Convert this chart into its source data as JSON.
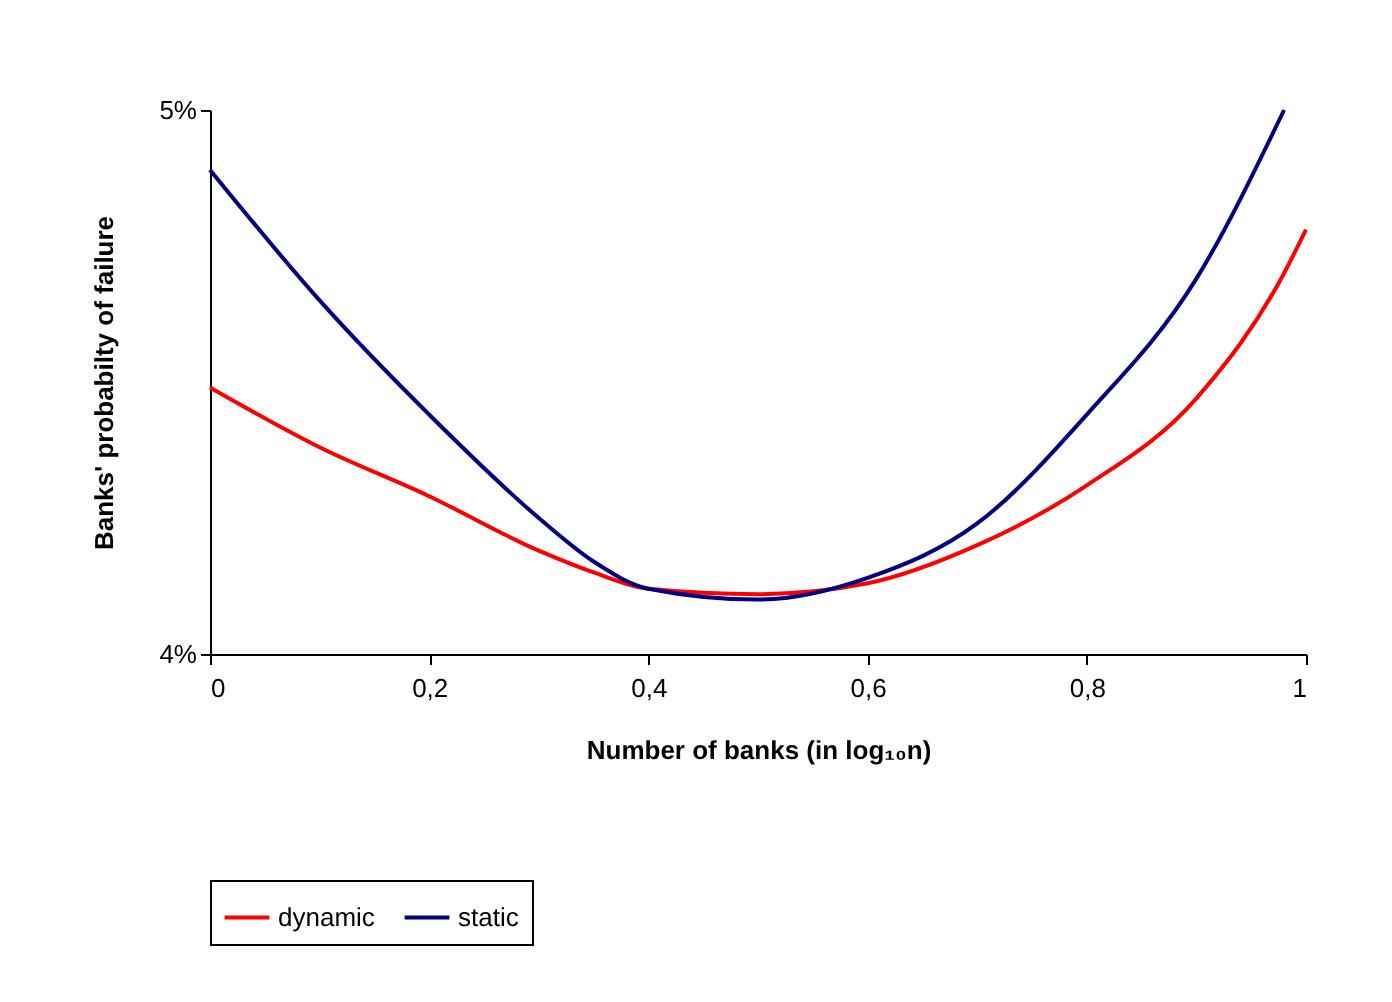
{
  "chart_data": {
    "type": "line",
    "xlabel": "Number of banks (in log₁₀n)",
    "ylabel": "Banks' probabilty of failure",
    "x": [
      0,
      0.1,
      0.2,
      0.3,
      0.35,
      0.4,
      0.5,
      0.6,
      0.7,
      0.8,
      0.9,
      0.98,
      1
    ],
    "series": [
      {
        "name": "dynamic",
        "color": "#ff0000",
        "values": [
          4.49,
          4.38,
          4.29,
          4.19,
          4.15,
          4.12,
          4.11,
          4.13,
          4.2,
          4.31,
          4.47,
          4.7,
          4.78
        ]
      },
      {
        "name": "static",
        "color": "#000080",
        "values": [
          4.89,
          4.65,
          4.44,
          4.25,
          4.17,
          4.12,
          4.1,
          4.14,
          4.24,
          4.44,
          4.69,
          5.0,
          null
        ]
      }
    ],
    "xlim": [
      0,
      1
    ],
    "ylim": [
      4,
      5
    ],
    "xticks": [
      0,
      {
        "value": 0.2,
        "label": "0,2"
      },
      {
        "value": 0.4,
        "label": "0,4"
      },
      {
        "value": 0.6,
        "label": "0,6"
      },
      {
        "value": 0.8,
        "label": "0,8"
      },
      1
    ],
    "yticks": [
      {
        "value": 4,
        "label": "4%"
      },
      {
        "value": 5,
        "label": "5%"
      }
    ],
    "grid": false,
    "legend": "bottom",
    "marker": "none",
    "line_style": "solid"
  }
}
